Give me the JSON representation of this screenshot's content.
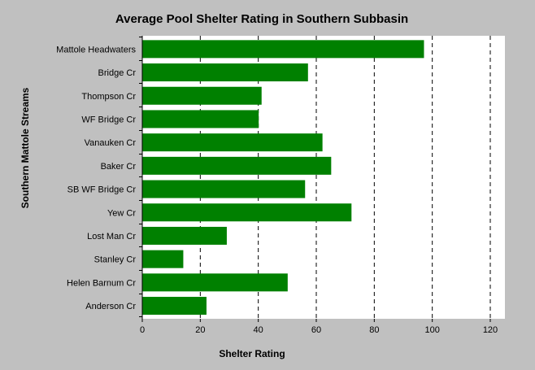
{
  "chart_data": {
    "type": "bar",
    "orientation": "horizontal",
    "title": "Average Pool Shelter Rating in Southern Subbasin",
    "xlabel": "Shelter Rating",
    "ylabel": "Southern Mattole Streams",
    "categories": [
      "Mattole Headwaters",
      "Bridge Cr",
      "Thompson Cr",
      "WF Bridge Cr",
      "Vanauken Cr",
      "Baker Cr",
      "SB WF Bridge Cr",
      "Yew Cr",
      "Lost Man Cr",
      "Stanley Cr",
      "Helen Barnum Cr",
      "Anderson Cr"
    ],
    "values": [
      97,
      57,
      41,
      40,
      62,
      65,
      56,
      72,
      29,
      14,
      50,
      22
    ],
    "xlim": [
      0,
      120
    ],
    "xticks": [
      0,
      20,
      40,
      60,
      80,
      100,
      120
    ],
    "grid": "vertical dashed",
    "bar_color": "#008000",
    "plot_background": "#ffffff",
    "page_background": "#c0c0c0"
  }
}
